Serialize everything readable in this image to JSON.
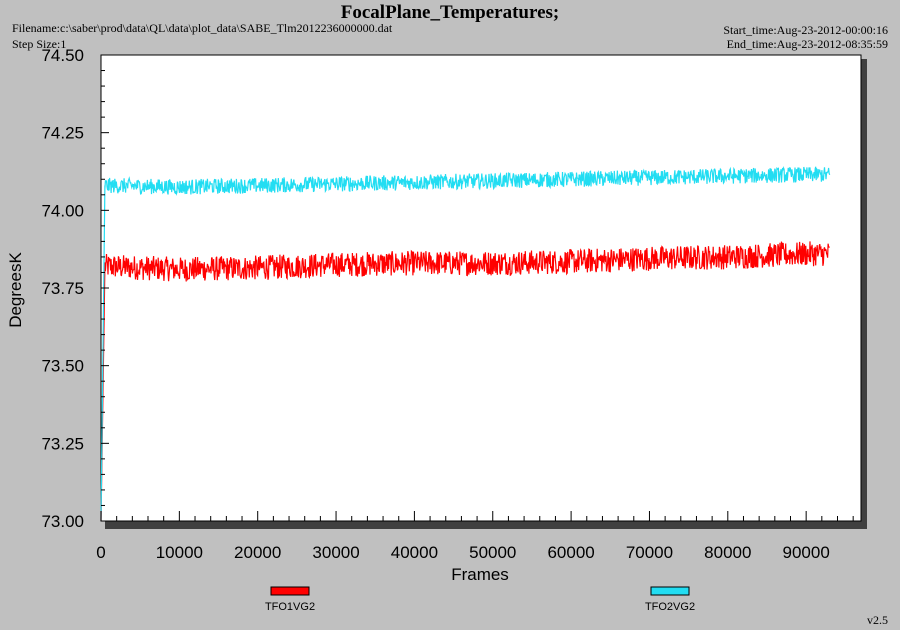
{
  "header": {
    "filename": "Filename:c:\\saber\\prod\\data\\QL\\data\\plot_data\\SABE_Tlm2012236000000.dat",
    "step_size": "Step Size:1",
    "start_time": "Start_time:Aug-23-2012-00:00:16",
    "end_time": "End_time:Aug-23-2012-08:35:59"
  },
  "footer": {
    "version": "v2.5"
  },
  "colors": {
    "background": "#c0c0c0",
    "plot": "#ffffff",
    "series1": "#ff0000",
    "series2": "#22ddf2"
  },
  "chart_data": {
    "type": "line",
    "title": "FocalPlane_Temperatures;",
    "xlabel": "Frames",
    "ylabel": "DegreesK",
    "xlim": [
      0,
      97000
    ],
    "ylim": [
      73.0,
      74.5
    ],
    "x_ticks": [
      0,
      10000,
      20000,
      30000,
      40000,
      50000,
      60000,
      70000,
      80000,
      90000
    ],
    "x_tick_labels": [
      "0",
      "10000",
      "20000",
      "30000",
      "40000",
      "50000",
      "60000",
      "70000",
      "80000",
      "90000"
    ],
    "y_ticks": [
      73.0,
      73.25,
      73.5,
      73.75,
      74.0,
      74.25,
      74.5
    ],
    "y_tick_labels": [
      "73.00",
      "73.25",
      "73.50",
      "73.75",
      "74.00",
      "74.25",
      "74.50"
    ],
    "grid": false,
    "legend_position": "bottom",
    "series": [
      {
        "name": "TFO1VG2",
        "color": "#ff0000",
        "noise_band": 0.04,
        "x": [
          0,
          500,
          10000,
          20000,
          30000,
          40000,
          50000,
          60000,
          70000,
          80000,
          90000,
          93000
        ],
        "y": [
          73.0,
          73.82,
          73.81,
          73.815,
          73.825,
          73.83,
          73.83,
          73.835,
          73.845,
          73.85,
          73.86,
          73.86
        ]
      },
      {
        "name": "TFO2VG2",
        "color": "#22ddf2",
        "noise_band": 0.025,
        "x": [
          0,
          500,
          10000,
          20000,
          30000,
          40000,
          50000,
          60000,
          70000,
          80000,
          90000,
          93000
        ],
        "y": [
          73.0,
          74.08,
          74.075,
          74.08,
          74.085,
          74.09,
          74.095,
          74.1,
          74.105,
          74.11,
          74.115,
          74.115
        ]
      }
    ]
  }
}
